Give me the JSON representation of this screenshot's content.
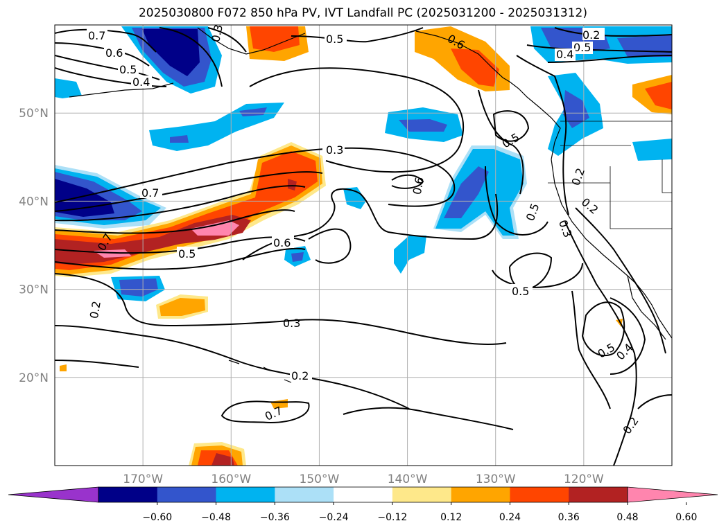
{
  "title": "2025030800 F072 850 hPa PV, IVT Landfall PC (2025031200 - 2025031312)",
  "map": {
    "projection": "PlateCarree",
    "lon_range": [
      -180,
      -110
    ],
    "lat_range": [
      10,
      60
    ],
    "lon_ticks": [
      {
        "value": -170,
        "label": "170°W"
      },
      {
        "value": -160,
        "label": "160°W"
      },
      {
        "value": -150,
        "label": "150°W"
      },
      {
        "value": -140,
        "label": "140°W"
      },
      {
        "value": -130,
        "label": "130°W"
      },
      {
        "value": -120,
        "label": "120°W"
      }
    ],
    "lat_ticks": [
      {
        "value": 20,
        "label": "20°N"
      },
      {
        "value": 30,
        "label": "30°N"
      },
      {
        "value": 40,
        "label": "40°N"
      },
      {
        "value": 50,
        "label": "50°N"
      }
    ],
    "gridlines": true
  },
  "contour_labels": [
    "0.7",
    "0.6",
    "0.5",
    "0.4",
    "0.3",
    "0.5",
    "0.6",
    "0.5",
    "0.4",
    "0.3",
    "0.7",
    "0.5",
    "0.6",
    "0.2",
    "0.3",
    "0.2",
    "0.7",
    "0.6",
    "0.5",
    "0.5",
    "0.2",
    "0.2",
    "0.3",
    "0.5",
    "0.5",
    "0.4",
    "0.2"
  ],
  "colorbar": {
    "extend": "both",
    "colors": [
      "#9933cc",
      "#000088",
      "#3355cc",
      "#00b3f0",
      "#ace0f7",
      "#ffffff",
      "#fee88a",
      "#ffa500",
      "#ff4500",
      "#b22222",
      "#ff85ae"
    ],
    "tick_labels": [
      "−0.60",
      "−0.48",
      "−0.36",
      "−0.24",
      "−0.12",
      "0.12",
      "0.24",
      "0.36",
      "0.48",
      "0.60"
    ]
  },
  "colors": {
    "dark_red": "#b22222",
    "red_orange": "#ff4500",
    "orange": "#ffa500",
    "light_yellow": "#fee88a",
    "pink": "#ff85ae",
    "navy": "#000088",
    "blue": "#3355cc",
    "cyan": "#00b3f0",
    "light_blue": "#ace0f7"
  }
}
